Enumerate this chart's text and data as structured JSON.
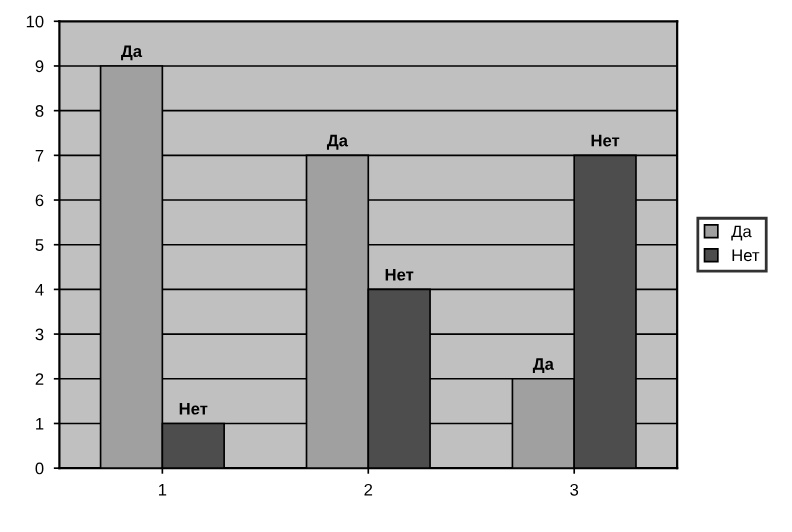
{
  "chart_data": {
    "type": "bar",
    "categories": [
      "1",
      "2",
      "3"
    ],
    "series": [
      {
        "name": "Да",
        "color": "#a0a0a0",
        "values": [
          9,
          7,
          2
        ],
        "value_labels": [
          "Да",
          "Да",
          "Да"
        ]
      },
      {
        "name": "Нет",
        "color": "#4d4d4d",
        "values": [
          1,
          4,
          7
        ],
        "value_labels": [
          "Нет",
          "Нет",
          "Нет"
        ]
      }
    ],
    "ylim": [
      0,
      10
    ],
    "yticks": [
      0,
      1,
      2,
      3,
      4,
      5,
      6,
      7,
      8,
      9,
      10
    ],
    "grid": "y",
    "legend": "right"
  }
}
